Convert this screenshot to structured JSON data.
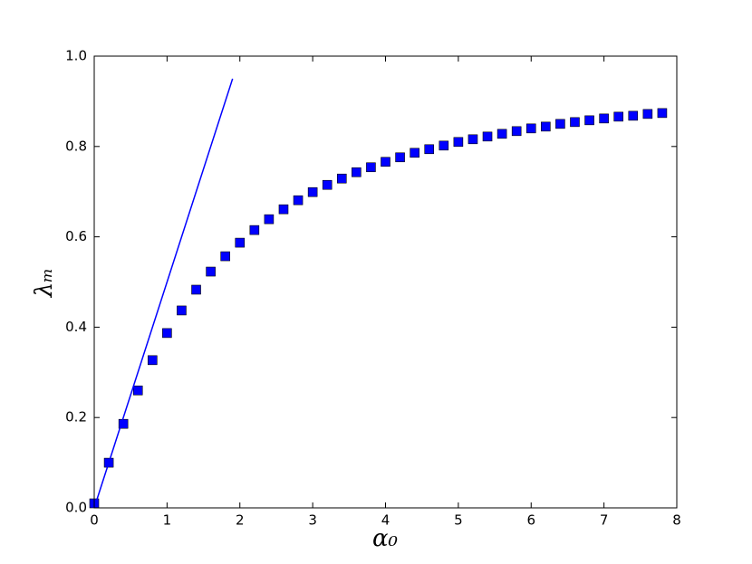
{
  "chart_data": {
    "type": "scatter",
    "x_label": "α₀",
    "y_label": "λₘ",
    "xlim": [
      0,
      8
    ],
    "ylim": [
      0,
      1.0
    ],
    "xticks": [
      0,
      1,
      2,
      3,
      4,
      5,
      6,
      7,
      8
    ],
    "yticks": [
      {
        "value": 0,
        "label": "0.0"
      },
      0.2,
      0.4,
      0.6,
      0.8,
      {
        "value": 1.0,
        "label": "1.0"
      }
    ],
    "grid": false,
    "series": [
      {
        "style": "markers",
        "marker": "square",
        "color": "#0000ff",
        "x": [
          0,
          0.2,
          0.4,
          0.6,
          0.8,
          1.0,
          1.2,
          1.4,
          1.6,
          1.8,
          2.0,
          2.2,
          2.4,
          2.6,
          2.8,
          3.0,
          3.2,
          3.4,
          3.6,
          3.8,
          4.0,
          4.2,
          4.4,
          4.6,
          4.8,
          5.0,
          5.2,
          5.4,
          5.6,
          5.8,
          6.0,
          6.2,
          6.4,
          6.6,
          6.8,
          7.0,
          7.2,
          7.4,
          7.6,
          7.8
        ],
        "values": [
          0.01,
          0.1,
          0.186,
          0.26,
          0.327,
          0.387,
          0.437,
          0.483,
          0.523,
          0.557,
          0.587,
          0.615,
          0.639,
          0.661,
          0.681,
          0.699,
          0.715,
          0.729,
          0.743,
          0.754,
          0.766,
          0.776,
          0.786,
          0.794,
          0.802,
          0.81,
          0.816,
          0.822,
          0.828,
          0.834,
          0.84,
          0.844,
          0.85,
          0.854,
          0.858,
          0.862,
          0.866,
          0.868,
          0.872,
          0.874
        ]
      },
      {
        "style": "line",
        "color": "#0000ff",
        "x": [
          0,
          1.9
        ],
        "values": [
          0,
          0.95
        ]
      }
    ]
  }
}
